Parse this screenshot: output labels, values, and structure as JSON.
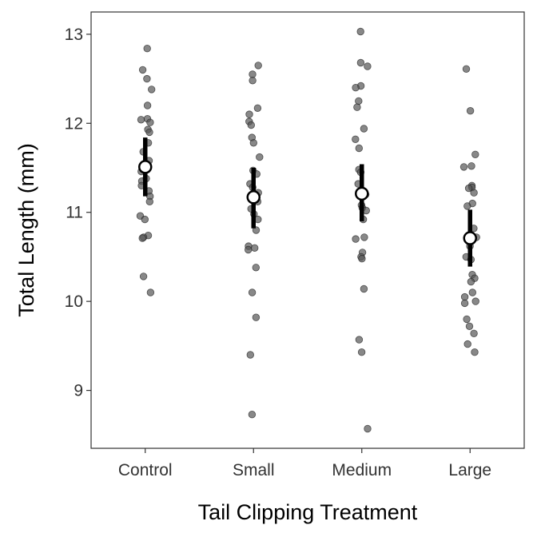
{
  "chart_data": {
    "type": "scatter",
    "title": "",
    "xlabel": "Tail Clipping Treatment",
    "ylabel": "Total Length (mm)",
    "categories": [
      "Control",
      "Small",
      "Medium",
      "Large"
    ],
    "ylim": [
      8.35,
      13.25
    ],
    "yticks": [
      9,
      10,
      11,
      12,
      13
    ],
    "grid": false,
    "legend": "none",
    "point_color": "#555555",
    "point_opacity": 0.7,
    "summary_color": "#000000",
    "mean_fill": "#ffffff",
    "points": [
      [
        12.84,
        12.6,
        12.5,
        12.38,
        12.2,
        12.05,
        12.04,
        12.01,
        11.93,
        11.9,
        11.78,
        11.68,
        11.58,
        11.46,
        11.38,
        11.35,
        11.3,
        11.24,
        11.18,
        11.12,
        10.96,
        10.92,
        10.74,
        10.72,
        10.71,
        10.28,
        10.1
      ],
      [
        12.65,
        12.55,
        12.48,
        12.17,
        12.1,
        12.02,
        11.98,
        11.84,
        11.78,
        11.62,
        11.47,
        11.43,
        11.32,
        11.28,
        11.22,
        11.12,
        11.04,
        10.98,
        10.92,
        10.8,
        10.62,
        10.6,
        10.58,
        10.38,
        10.1,
        9.82,
        9.4,
        8.73
      ],
      [
        13.03,
        12.68,
        12.64,
        12.42,
        12.4,
        12.25,
        12.18,
        11.94,
        11.82,
        11.72,
        11.48,
        11.45,
        11.32,
        11.2,
        11.08,
        11.05,
        11.02,
        10.92,
        10.72,
        10.7,
        10.55,
        10.5,
        10.48,
        10.14,
        9.57,
        9.43,
        8.57
      ],
      [
        12.61,
        12.14,
        11.65,
        11.52,
        11.51,
        11.3,
        11.28,
        11.27,
        11.22,
        11.1,
        11.07,
        10.82,
        10.72,
        10.62,
        10.5,
        10.47,
        10.3,
        10.26,
        10.22,
        10.1,
        10.05,
        10.0,
        9.98,
        9.8,
        9.72,
        9.64,
        9.52,
        9.43
      ]
    ],
    "means": [
      11.51,
      11.17,
      11.21,
      10.71
    ],
    "ci_lower": [
      11.18,
      10.82,
      10.9,
      10.39
    ],
    "ci_upper": [
      11.84,
      11.5,
      11.54,
      11.03
    ]
  }
}
